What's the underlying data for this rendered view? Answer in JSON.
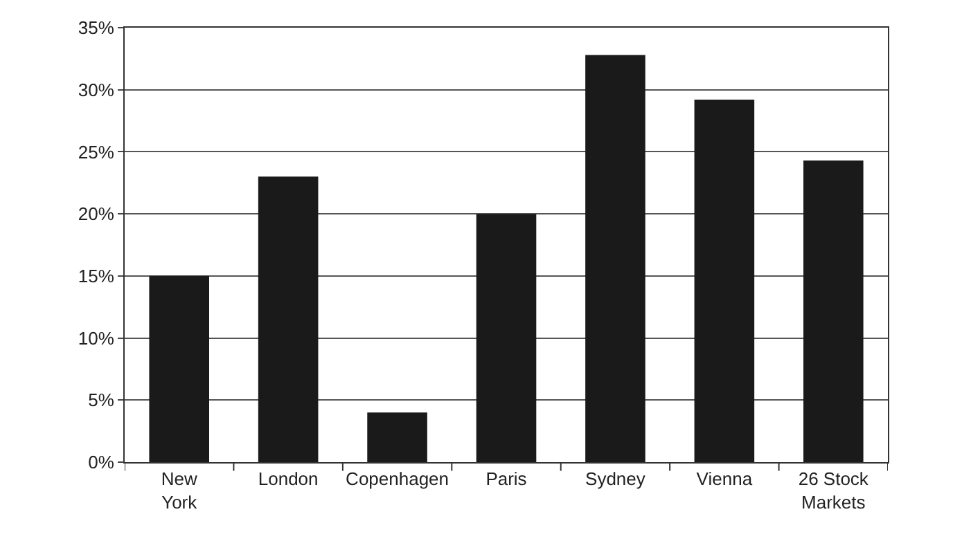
{
  "chart_data": {
    "type": "bar",
    "categories": [
      "New\nYork",
      "London",
      "Copenhagen",
      "Paris",
      "Sydney",
      "Vienna",
      "26 Stock\nMarkets"
    ],
    "values": [
      15,
      23,
      4,
      20,
      32.8,
      29.2,
      24.3
    ],
    "color": "#1a1a1a",
    "ylim": [
      0,
      35
    ],
    "yticks": [
      {
        "value": 0,
        "label": "0%"
      },
      {
        "value": 5,
        "label": "5%"
      },
      {
        "value": 10,
        "label": "10%"
      },
      {
        "value": 15,
        "label": "15%"
      },
      {
        "value": 20,
        "label": "20%"
      },
      {
        "value": 25,
        "label": "25%"
      },
      {
        "value": 30,
        "label": "30%"
      },
      {
        "value": 35,
        "label": "35%"
      }
    ],
    "grid": "y"
  }
}
